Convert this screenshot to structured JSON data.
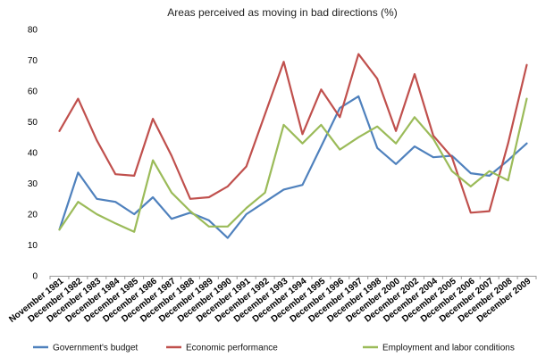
{
  "chart_data": {
    "type": "line",
    "title": "Areas perceived as moving in bad directions (%)",
    "xlabel": "",
    "ylabel": "",
    "ylim": [
      0,
      80
    ],
    "yticks": [
      0,
      10,
      20,
      30,
      40,
      50,
      60,
      70,
      80
    ],
    "grid": false,
    "legend_position": "bottom",
    "categories": [
      "November 1981",
      "December 1982",
      "December 1983",
      "December 1984",
      "December 1985",
      "December 1986",
      "December 1987",
      "December 1988",
      "December 1989",
      "December 1990",
      "December 1991",
      "December 1992",
      "December 1993",
      "December 1994",
      "December 1995",
      "December 1996",
      "December 1997",
      "December 1998",
      "December 2000",
      "December 2002",
      "December 2004",
      "December 2005",
      "December 2006",
      "December 2007",
      "December 2008",
      "December 2009"
    ],
    "series": [
      {
        "name": "Government's budget",
        "color": "#4f81bd",
        "values": [
          15,
          33.5,
          25,
          24,
          20,
          25.5,
          18.5,
          20.5,
          18,
          12.3,
          20,
          24,
          28,
          29.5,
          42,
          54.5,
          58.3,
          41.5,
          36.3,
          42,
          38.5,
          39,
          33.3,
          32.5,
          37.5,
          43
        ]
      },
      {
        "name": "Economic performance",
        "color": "#c0504d",
        "values": [
          47,
          57.5,
          44,
          33,
          32.5,
          51,
          39,
          25,
          25.5,
          29,
          35.5,
          52.5,
          69.5,
          46,
          60.5,
          51.5,
          72,
          64,
          47,
          65.5,
          45.5,
          38.5,
          20.5,
          21,
          43,
          68.5
        ]
      },
      {
        "name": "Employment and labor conditions",
        "color": "#9bbb59",
        "values": [
          15,
          24,
          20,
          17,
          14.3,
          37.5,
          27,
          21,
          16,
          16,
          22,
          27,
          49,
          43,
          49,
          41,
          45,
          48.5,
          43,
          51.5,
          44.5,
          34,
          29,
          34,
          31,
          57.5
        ]
      }
    ]
  }
}
